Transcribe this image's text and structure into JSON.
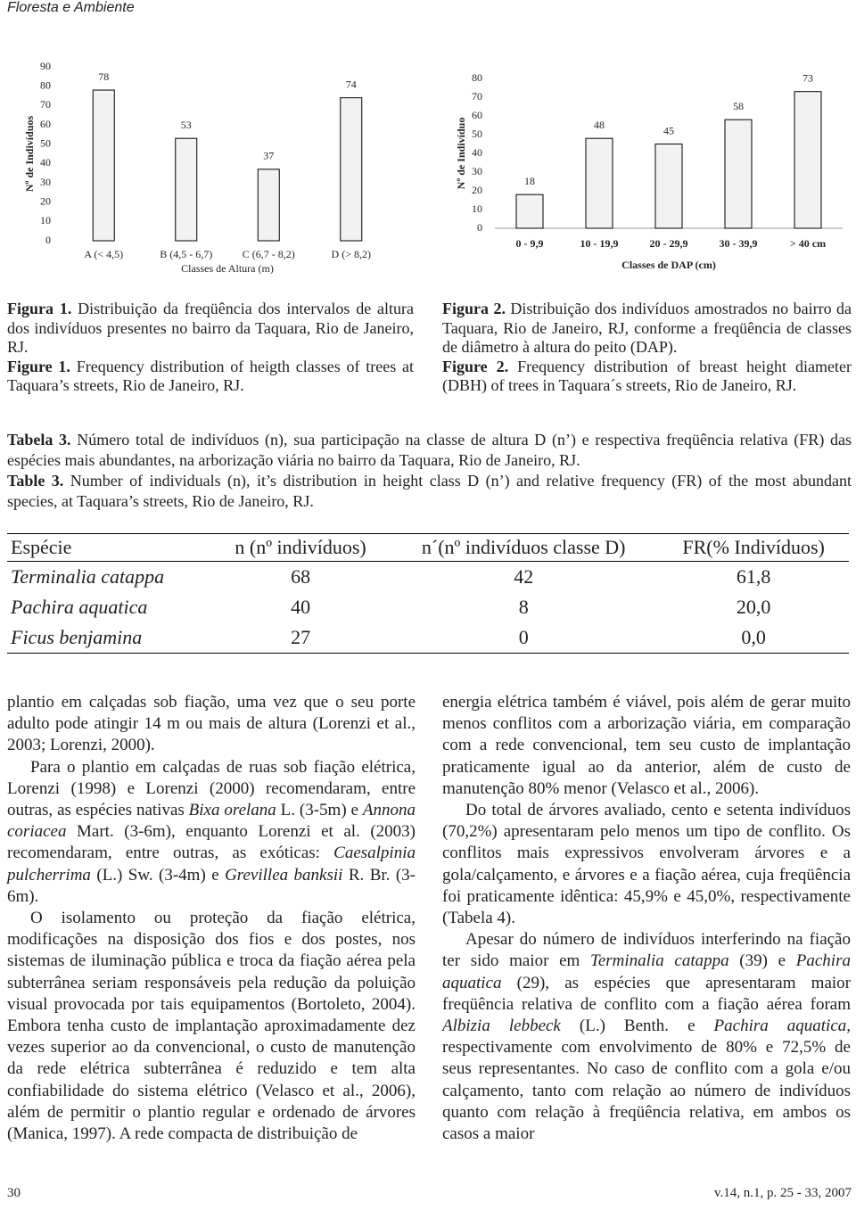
{
  "header": {
    "journal": "Floresta e Ambiente"
  },
  "chart_data": [
    {
      "type": "bar",
      "y_label": "Nº de Indivíduos",
      "x_label": "Classes de Altura (m)",
      "categories": [
        "A (< 4,5)",
        "B (4,5 - 6,7)",
        "C (6,7 - 8,2)",
        "D (> 8,2)"
      ],
      "values": [
        78,
        53,
        37,
        74
      ],
      "color": "#f2f2f2",
      "ylim": [
        0,
        90
      ],
      "yticks": [
        0,
        10,
        20,
        30,
        40,
        50,
        60,
        70,
        80,
        90
      ]
    },
    {
      "type": "bar",
      "y_label": "Nº de Indivíduo",
      "x_label": "Classes de DAP (cm)",
      "categories": [
        "0 - 9,9",
        "10 - 19,9",
        "20 - 29,9",
        "30 - 39,9",
        "> 40 cm"
      ],
      "values": [
        18,
        48,
        45,
        58,
        73
      ],
      "color": "#f2f2f2",
      "ylim": [
        0,
        80
      ],
      "yticks": [
        0,
        10,
        20,
        30,
        40,
        50,
        60,
        70,
        80
      ]
    }
  ],
  "figure1": {
    "label_pt": "Figura 1.",
    "caption_pt": "Distribuição da freqüência dos intervalos de altura dos indivíduos presentes no bairro da Taquara, Rio de Janeiro, RJ.",
    "label_en": "Figure 1.",
    "caption_en": "Frequency distribution of heigth classes of trees at Taquara’s streets, Rio de Janeiro, RJ."
  },
  "figure2": {
    "label_pt": "Figura 2.",
    "caption_pt": "Distribuição dos indivíduos amostrados no bairro da Taquara, Rio de Janeiro, RJ, conforme a freqüência de classes de diâmetro à altura do peito (DAP).",
    "label_en": "Figure 2.",
    "caption_en": "Frequency distribution of breast height diameter (DBH) of trees in Taquara´s streets, Rio de Janeiro, RJ."
  },
  "table3": {
    "label_pt": "Tabela 3.",
    "caption_pt": "Número total de indivíduos (n), sua participação na classe de altura D (n’) e respectiva freqüência relativa (FR) das espécies mais abundantes, na arborização viária no bairro da Taquara, Rio de Janeiro, RJ.",
    "label_en": "Table 3.",
    "caption_en": "Number of individuals (n), it’s distribution in height class D (n’) and relative frequency (FR) of the most abundant species, at Taquara’s streets, Rio de Janeiro, RJ.",
    "header": [
      "Espécie",
      "n (nº indivíduos)",
      "n´(nº indivíduos classe D)",
      "FR(% Indivíduos)"
    ],
    "rows": [
      [
        "Terminalia catappa",
        "68",
        "42",
        "61,8"
      ],
      [
        "Pachira aquatica",
        "40",
        "8",
        "20,0"
      ],
      [
        "Ficus benjamina",
        "27",
        "0",
        "0,0"
      ]
    ]
  },
  "text": {
    "left": [
      [
        "plantio em calçadas sob fiação, uma vez que o seu porte adulto pode atingir 14 m ou mais de altura (Lorenzi et al., 2003; Lorenzi, 2000)."
      ],
      [
        "Para o plantio em calçadas de ruas sob fiação elétrica, Lorenzi (1998) e Lorenzi (2000) recomendaram, entre outras, as espécies nativas ",
        "Bixa orelana",
        " L. (3-5m) e ",
        "Annona coriacea",
        " Mart. (3-6m), enquanto Lorenzi et al. (2003) recomendaram, entre outras, as exóticas: ",
        "Caesalpinia pulcherrima",
        " (L.) Sw. (3-4m) e ",
        "Grevillea banksii",
        " R. Br. (3-6m)."
      ],
      [
        "O isolamento ou proteção da fiação elétrica, modificações na disposição dos fios e dos postes, nos sistemas de iluminação pública e troca da fiação aérea pela subterrânea seriam responsáveis pela redução da poluição visual provocada por tais equipamentos (Bortoleto, 2004). Embora tenha custo de implantação aproximadamente dez vezes superior ao da convencional, o custo de manutenção da rede elétrica subterrânea é reduzido e tem alta confiabilidade do sistema elétrico (Velasco et al., 2006), além de permitir o plantio regular e ordenado de árvores (Manica, 1997). A rede compacta de distribuição de"
      ]
    ],
    "right": [
      [
        "energia elétrica também é viável, pois além de gerar muito menos conflitos com a arborização viária, em comparação com a rede convencional, tem seu custo de implantação praticamente igual ao da anterior, além de custo de manutenção 80% menor (Velasco et al., 2006)."
      ],
      [
        "Do total de árvores avaliado, cento e setenta indivíduos (70,2%) apresentaram pelo menos um tipo de conflito. Os conflitos mais expressivos envolveram árvores e a gola/calçamento, e árvores e a fiação aérea, cuja freqüência foi praticamente idêntica: 45,9% e 45,0%, respectivamente (Tabela 4)."
      ],
      [
        "Apesar do número de indivíduos interferindo na fiação ter sido maior em ",
        "Terminalia catappa",
        " (39) e ",
        "Pachira aquatica",
        " (29), as espécies que apresentaram maior freqüência relativa de conflito com a fiação aérea foram ",
        "Albizia lebbeck",
        " (L.) Benth. e ",
        "Pachira aquatica",
        ", respectivamente com envolvimento de 80% e 72,5% de seus representantes. No caso de conflito com a gola e/ou calçamento, tanto com relação ao número de indivíduos quanto com relação à freqüência relativa, em ambos os casos a maior"
      ]
    ]
  },
  "footer": {
    "page": "30",
    "volume": "v.14, n.1, p. 25 - 33, 2007"
  }
}
